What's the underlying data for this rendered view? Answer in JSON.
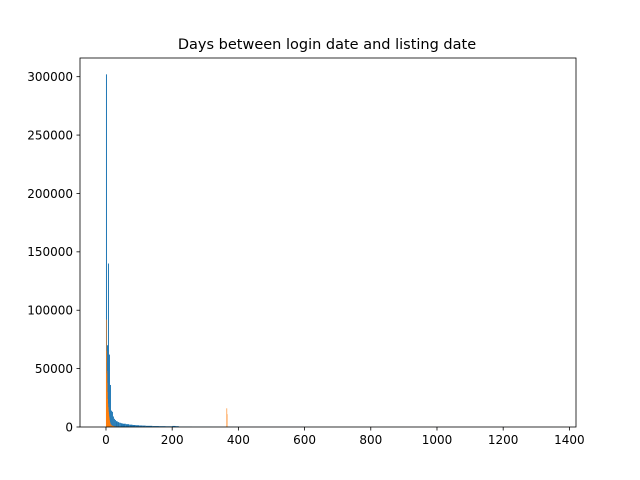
{
  "chart_data": {
    "type": "bar",
    "title": "Days between login date and listing date",
    "xlabel": "",
    "ylabel": "",
    "xlim": [
      -78.5,
      1420
    ],
    "ylim": [
      0,
      316000
    ],
    "xticks": [
      0,
      200,
      400,
      600,
      800,
      1000,
      1200,
      1400
    ],
    "yticks": [
      0,
      50000,
      100000,
      150000,
      200000,
      250000,
      300000
    ],
    "grid": false,
    "series": [
      {
        "color": "#1f77b4",
        "bins": [
          {
            "x0": 0,
            "x1": 3,
            "y": 302000
          },
          {
            "x0": 3,
            "x1": 6,
            "y": 70000
          },
          {
            "x0": 6,
            "x1": 9,
            "y": 140000
          },
          {
            "x0": 9,
            "x1": 12,
            "y": 62000
          },
          {
            "x0": 12,
            "x1": 15,
            "y": 36000
          },
          {
            "x0": 15,
            "x1": 18,
            "y": 14000
          },
          {
            "x0": 18,
            "x1": 21,
            "y": 13000
          },
          {
            "x0": 21,
            "x1": 24,
            "y": 9000
          },
          {
            "x0": 24,
            "x1": 27,
            "y": 7000
          },
          {
            "x0": 27,
            "x1": 30,
            "y": 6000
          },
          {
            "x0": 30,
            "x1": 35,
            "y": 5000
          },
          {
            "x0": 35,
            "x1": 40,
            "y": 4200
          },
          {
            "x0": 40,
            "x1": 45,
            "y": 3600
          },
          {
            "x0": 45,
            "x1": 50,
            "y": 3200
          },
          {
            "x0": 50,
            "x1": 60,
            "y": 2800
          },
          {
            "x0": 60,
            "x1": 70,
            "y": 2400
          },
          {
            "x0": 70,
            "x1": 80,
            "y": 2000
          },
          {
            "x0": 80,
            "x1": 90,
            "y": 1700
          },
          {
            "x0": 90,
            "x1": 100,
            "y": 1500
          },
          {
            "x0": 100,
            "x1": 110,
            "y": 1300
          },
          {
            "x0": 110,
            "x1": 120,
            "y": 1200
          },
          {
            "x0": 120,
            "x1": 140,
            "y": 1000
          },
          {
            "x0": 140,
            "x1": 160,
            "y": 800
          },
          {
            "x0": 160,
            "x1": 180,
            "y": 700
          },
          {
            "x0": 180,
            "x1": 200,
            "y": 600
          },
          {
            "x0": 200,
            "x1": 210,
            "y": 900
          },
          {
            "x0": 210,
            "x1": 220,
            "y": 700
          },
          {
            "x0": 220,
            "x1": 260,
            "y": 300
          },
          {
            "x0": 260,
            "x1": 320,
            "y": 200
          },
          {
            "x0": 320,
            "x1": 400,
            "y": 150
          },
          {
            "x0": 400,
            "x1": 600,
            "y": 80
          },
          {
            "x0": 600,
            "x1": 900,
            "y": 40
          },
          {
            "x0": 900,
            "x1": 1350,
            "y": 20
          }
        ]
      },
      {
        "color": "#ff7f0e",
        "bins": [
          {
            "x0": 0,
            "x1": 0.7,
            "y": 46000
          },
          {
            "x0": 0.7,
            "x1": 1.4,
            "y": 92000
          },
          {
            "x0": 1.4,
            "x1": 2.1,
            "y": 65000
          },
          {
            "x0": 2.1,
            "x1": 2.8,
            "y": 48000
          },
          {
            "x0": 2.8,
            "x1": 3.5,
            "y": 38000
          },
          {
            "x0": 3.5,
            "x1": 4.2,
            "y": 30000
          },
          {
            "x0": 4.2,
            "x1": 4.9,
            "y": 24000
          },
          {
            "x0": 4.9,
            "x1": 5.6,
            "y": 20000
          },
          {
            "x0": 5.6,
            "x1": 6.3,
            "y": 17000
          },
          {
            "x0": 6.3,
            "x1": 7.0,
            "y": 15000
          },
          {
            "x0": 7.0,
            "x1": 7.7,
            "y": 13000
          },
          {
            "x0": 7.7,
            "x1": 8.4,
            "y": 11000
          },
          {
            "x0": 8.4,
            "x1": 9.1,
            "y": 9000
          },
          {
            "x0": 9.1,
            "x1": 9.8,
            "y": 7500
          },
          {
            "x0": 9.8,
            "x1": 10.5,
            "y": 6000
          },
          {
            "x0": 10.5,
            "x1": 11.2,
            "y": 5000
          },
          {
            "x0": 11.2,
            "x1": 12.6,
            "y": 4000
          },
          {
            "x0": 12.6,
            "x1": 14.0,
            "y": 3000
          },
          {
            "x0": 14.0,
            "x1": 16.0,
            "y": 2200
          },
          {
            "x0": 16.0,
            "x1": 18.0,
            "y": 1600
          },
          {
            "x0": 18.0,
            "x1": 21.0,
            "y": 1100
          },
          {
            "x0": 21.0,
            "x1": 25.0,
            "y": 800
          },
          {
            "x0": 25.0,
            "x1": 30.0,
            "y": 500
          },
          {
            "x0": 30.0,
            "x1": 40.0,
            "y": 300
          },
          {
            "x0": 364.2,
            "x1": 364.9,
            "y": 16000
          },
          {
            "x0": 364.9,
            "x1": 365.6,
            "y": 11000
          }
        ]
      }
    ]
  }
}
